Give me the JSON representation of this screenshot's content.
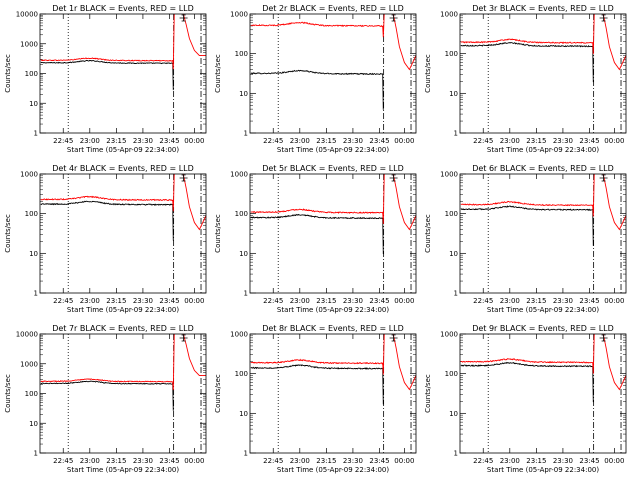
{
  "colors": {
    "events": "#000000",
    "lld": "#ff0000",
    "background": "#ffffff"
  },
  "chart_data": [
    {
      "type": "line",
      "title": "Det 1r BLACK = Events, RED = LLD",
      "ylabel": "Counts/sec",
      "xlabel": "Start Time (05-Apr-09 22:34:00)",
      "y_scale": "log",
      "ylim": [
        1,
        10000
      ],
      "y_ticks": [
        "1",
        "10",
        "100",
        "1000",
        "10000"
      ],
      "x_ticks": [
        "22:45",
        "23:00",
        "23:15",
        "23:30",
        "23:45",
        "00:00"
      ],
      "series": [
        {
          "name": "Events",
          "color": "black",
          "level": 230
        },
        {
          "name": "LLD",
          "color": "red",
          "level": 280
        }
      ]
    },
    {
      "type": "line",
      "title": "Det 2r BLACK = Events, RED = LLD",
      "ylabel": "Counts/sec",
      "xlabel": "Start Time (05-Apr-09 22:34:00)",
      "y_scale": "log",
      "ylim": [
        1,
        1000
      ],
      "y_ticks": [
        "1",
        "10",
        "100",
        "1000"
      ],
      "x_ticks": [
        "22:45",
        "23:00",
        "23:15",
        "23:30",
        "23:45",
        "00:00"
      ],
      "series": [
        {
          "name": "Events",
          "color": "black",
          "level": 32
        },
        {
          "name": "LLD",
          "color": "red",
          "level": 520
        }
      ]
    },
    {
      "type": "line",
      "title": "Det 3r BLACK = Events, RED = LLD",
      "ylabel": "Counts/sec",
      "xlabel": "Start Time (05-Apr-09 22:34:00)",
      "y_scale": "log",
      "ylim": [
        1,
        1000
      ],
      "y_ticks": [
        "1",
        "10",
        "100",
        "1000"
      ],
      "x_ticks": [
        "22:45",
        "23:00",
        "23:15",
        "23:30",
        "23:45",
        "00:00"
      ],
      "series": [
        {
          "name": "Events",
          "color": "black",
          "level": 160
        },
        {
          "name": "LLD",
          "color": "red",
          "level": 195
        }
      ]
    },
    {
      "type": "line",
      "title": "Det 4r BLACK = Events, RED = LLD",
      "ylabel": "Counts/sec",
      "xlabel": "Start Time (05-Apr-09 22:34:00)",
      "y_scale": "log",
      "ylim": [
        1,
        1000
      ],
      "y_ticks": [
        "1",
        "10",
        "100",
        "1000"
      ],
      "x_ticks": [
        "22:45",
        "23:00",
        "23:15",
        "23:30",
        "23:45",
        "00:00"
      ],
      "series": [
        {
          "name": "Events",
          "color": "black",
          "level": 175
        },
        {
          "name": "LLD",
          "color": "red",
          "level": 230
        }
      ]
    },
    {
      "type": "line",
      "title": "Det 5r BLACK = Events, RED = LLD",
      "ylabel": "Counts/sec",
      "xlabel": "Start Time (05-Apr-09 22:34:00)",
      "y_scale": "log",
      "ylim": [
        1,
        1000
      ],
      "y_ticks": [
        "1",
        "10",
        "100",
        "1000"
      ],
      "x_ticks": [
        "22:45",
        "23:00",
        "23:15",
        "23:30",
        "23:45",
        "00:00"
      ],
      "series": [
        {
          "name": "Events",
          "color": "black",
          "level": 80
        },
        {
          "name": "LLD",
          "color": "red",
          "level": 110
        }
      ]
    },
    {
      "type": "line",
      "title": "Det 6r BLACK = Events, RED = LLD",
      "ylabel": "Counts/sec",
      "xlabel": "Start Time (05-Apr-09 22:34:00)",
      "y_scale": "log",
      "ylim": [
        1,
        1000
      ],
      "y_ticks": [
        "1",
        "10",
        "100",
        "1000"
      ],
      "x_ticks": [
        "22:45",
        "23:00",
        "23:15",
        "23:30",
        "23:45",
        "00:00"
      ],
      "series": [
        {
          "name": "Events",
          "color": "black",
          "level": 130
        },
        {
          "name": "LLD",
          "color": "red",
          "level": 170
        }
      ]
    },
    {
      "type": "line",
      "title": "Det 7r BLACK = Events, RED = LLD",
      "ylabel": "Counts/sec",
      "xlabel": "Start Time (05-Apr-09 22:34:00)",
      "y_scale": "log",
      "ylim": [
        1,
        10000
      ],
      "y_ticks": [
        "1",
        "10",
        "100",
        "1000",
        "10000"
      ],
      "x_ticks": [
        "22:45",
        "23:00",
        "23:15",
        "23:30",
        "23:45",
        "00:00"
      ],
      "series": [
        {
          "name": "Events",
          "color": "black",
          "level": 220
        },
        {
          "name": "LLD",
          "color": "red",
          "level": 260
        }
      ]
    },
    {
      "type": "line",
      "title": "Det 8r BLACK = Events, RED = LLD",
      "ylabel": "Counts/sec",
      "xlabel": "Start Time (05-Apr-09 22:34:00)",
      "y_scale": "log",
      "ylim": [
        1,
        1000
      ],
      "y_ticks": [
        "1",
        "10",
        "100",
        "1000"
      ],
      "x_ticks": [
        "22:45",
        "23:00",
        "23:15",
        "23:30",
        "23:45",
        "00:00"
      ],
      "series": [
        {
          "name": "Events",
          "color": "black",
          "level": 140
        },
        {
          "name": "LLD",
          "color": "red",
          "level": 190
        }
      ]
    },
    {
      "type": "line",
      "title": "Det 9r BLACK = Events, RED = LLD",
      "ylabel": "Counts/sec",
      "xlabel": "Start Time (05-Apr-09 22:34:00)",
      "y_scale": "log",
      "ylim": [
        1,
        1000
      ],
      "y_ticks": [
        "1",
        "10",
        "100",
        "1000"
      ],
      "x_ticks": [
        "22:45",
        "23:00",
        "23:15",
        "23:30",
        "23:45",
        "00:00"
      ],
      "series": [
        {
          "name": "Events",
          "color": "black",
          "level": 160
        },
        {
          "name": "LLD",
          "color": "red",
          "level": 200
        }
      ]
    }
  ]
}
